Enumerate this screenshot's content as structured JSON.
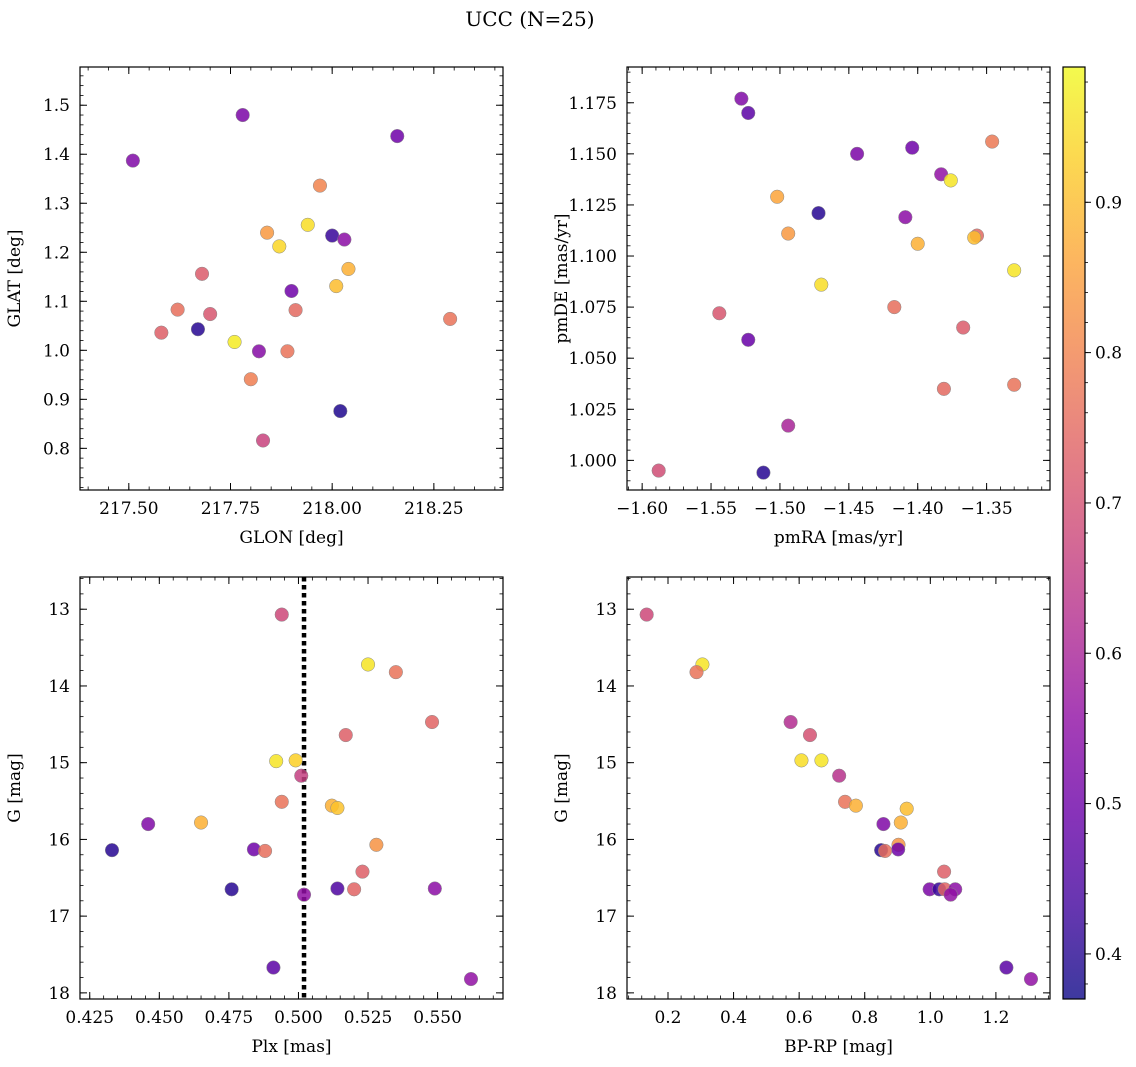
{
  "title": "UCC (N=25)",
  "colorbar": {
    "colormap": "plasma",
    "range": [
      0.37,
      0.99
    ],
    "ticks": [
      0.4,
      0.5,
      0.6,
      0.7,
      0.8,
      0.9
    ],
    "tick_labels": [
      "0.4",
      "0.5",
      "0.6",
      "0.7",
      "0.8",
      "0.9"
    ]
  },
  "chart_data": [
    {
      "type": "scatter",
      "name": "glon-glat",
      "xlabel": "GLON [deg]",
      "ylabel": "GLAT [deg]",
      "xlim": [
        217.38,
        218.42
      ],
      "ylim": [
        0.715,
        1.578
      ],
      "y_inverted": false,
      "xticks": [
        217.5,
        217.75,
        218.0,
        218.25
      ],
      "xtick_labels": [
        "217.50",
        "217.75",
        "218.00",
        "218.25"
      ],
      "yticks": [
        0.8,
        0.9,
        1.0,
        1.1,
        1.2,
        1.3,
        1.4,
        1.5
      ],
      "ytick_labels": [
        "0.8",
        "0.9",
        "1.0",
        "1.1",
        "1.2",
        "1.3",
        "1.4",
        "1.5"
      ],
      "points": [
        {
          "x": 217.51,
          "y": 1.387,
          "c": 0.53
        },
        {
          "x": 217.78,
          "y": 1.48,
          "c": 0.52
        },
        {
          "x": 218.16,
          "y": 1.437,
          "c": 0.5
        },
        {
          "x": 217.97,
          "y": 1.336,
          "c": 0.8
        },
        {
          "x": 217.94,
          "y": 1.256,
          "c": 0.95
        },
        {
          "x": 217.84,
          "y": 1.24,
          "c": 0.84
        },
        {
          "x": 217.87,
          "y": 1.212,
          "c": 0.94
        },
        {
          "x": 218.0,
          "y": 1.234,
          "c": 0.42
        },
        {
          "x": 218.03,
          "y": 1.226,
          "c": 0.55
        },
        {
          "x": 218.04,
          "y": 1.166,
          "c": 0.88
        },
        {
          "x": 217.68,
          "y": 1.156,
          "c": 0.72
        },
        {
          "x": 217.9,
          "y": 1.121,
          "c": 0.5
        },
        {
          "x": 218.01,
          "y": 1.131,
          "c": 0.9
        },
        {
          "x": 217.62,
          "y": 1.083,
          "c": 0.76
        },
        {
          "x": 217.7,
          "y": 1.074,
          "c": 0.71
        },
        {
          "x": 217.91,
          "y": 1.082,
          "c": 0.75
        },
        {
          "x": 218.29,
          "y": 1.064,
          "c": 0.77
        },
        {
          "x": 217.58,
          "y": 1.036,
          "c": 0.73
        },
        {
          "x": 217.67,
          "y": 1.043,
          "c": 0.4
        },
        {
          "x": 217.76,
          "y": 1.017,
          "c": 0.97
        },
        {
          "x": 217.82,
          "y": 0.998,
          "c": 0.54
        },
        {
          "x": 217.89,
          "y": 0.998,
          "c": 0.77
        },
        {
          "x": 217.8,
          "y": 0.941,
          "c": 0.79
        },
        {
          "x": 218.02,
          "y": 0.876,
          "c": 0.39
        },
        {
          "x": 217.83,
          "y": 0.816,
          "c": 0.67
        }
      ]
    },
    {
      "type": "scatter",
      "name": "pmra-pmde",
      "xlabel": "pmRA [mas/yr]",
      "ylabel": "pmDE [mas/yr]",
      "xlim": [
        -1.611,
        -1.304
      ],
      "ylim": [
        0.9855,
        1.1925
      ],
      "y_inverted": false,
      "xticks": [
        -1.6,
        -1.55,
        -1.5,
        -1.45,
        -1.4,
        -1.35
      ],
      "xtick_labels": [
        "−1.60",
        "−1.55",
        "−1.50",
        "−1.45",
        "−1.40",
        "−1.35"
      ],
      "yticks": [
        1.0,
        1.025,
        1.05,
        1.075,
        1.1,
        1.125,
        1.15,
        1.175
      ],
      "ytick_labels": [
        "1.000",
        "1.025",
        "1.050",
        "1.075",
        "1.100",
        "1.125",
        "1.150",
        "1.175"
      ],
      "points": [
        {
          "x": -1.528,
          "y": 1.177,
          "c": 0.53
        },
        {
          "x": -1.523,
          "y": 1.17,
          "c": 0.47
        },
        {
          "x": -1.444,
          "y": 1.15,
          "c": 0.52
        },
        {
          "x": -1.404,
          "y": 1.153,
          "c": 0.5
        },
        {
          "x": -1.346,
          "y": 1.156,
          "c": 0.78
        },
        {
          "x": -1.383,
          "y": 1.14,
          "c": 0.56
        },
        {
          "x": -1.376,
          "y": 1.137,
          "c": 0.96
        },
        {
          "x": -1.502,
          "y": 1.129,
          "c": 0.86
        },
        {
          "x": -1.472,
          "y": 1.121,
          "c": 0.4
        },
        {
          "x": -1.409,
          "y": 1.119,
          "c": 0.55
        },
        {
          "x": -1.494,
          "y": 1.111,
          "c": 0.84
        },
        {
          "x": -1.357,
          "y": 1.11,
          "c": 0.75
        },
        {
          "x": -1.359,
          "y": 1.109,
          "c": 0.9
        },
        {
          "x": -1.4,
          "y": 1.106,
          "c": 0.88
        },
        {
          "x": -1.33,
          "y": 1.093,
          "c": 0.96
        },
        {
          "x": -1.47,
          "y": 1.086,
          "c": 0.95
        },
        {
          "x": -1.417,
          "y": 1.075,
          "c": 0.76
        },
        {
          "x": -1.544,
          "y": 1.072,
          "c": 0.71
        },
        {
          "x": -1.367,
          "y": 1.065,
          "c": 0.72
        },
        {
          "x": -1.523,
          "y": 1.059,
          "c": 0.49
        },
        {
          "x": -1.381,
          "y": 1.035,
          "c": 0.75
        },
        {
          "x": -1.33,
          "y": 1.037,
          "c": 0.77
        },
        {
          "x": -1.494,
          "y": 1.017,
          "c": 0.6
        },
        {
          "x": -1.588,
          "y": 0.995,
          "c": 0.69
        },
        {
          "x": -1.512,
          "y": 0.994,
          "c": 0.4
        }
      ]
    },
    {
      "type": "scatter",
      "name": "plx-g",
      "xlabel": "Plx [mas]",
      "ylabel": "G [mag]",
      "xlim": [
        0.4215,
        0.5735
      ],
      "ylim": [
        12.58,
        18.08
      ],
      "y_inverted": true,
      "vline": {
        "x": 0.502,
        "style": "dotted"
      },
      "xticks": [
        0.425,
        0.45,
        0.475,
        0.5,
        0.525,
        0.55
      ],
      "xtick_labels": [
        "0.425",
        "0.450",
        "0.475",
        "0.500",
        "0.525",
        "0.550"
      ],
      "yticks": [
        13,
        14,
        15,
        16,
        17,
        18
      ],
      "ytick_labels": [
        "13",
        "14",
        "15",
        "16",
        "17",
        "18"
      ],
      "points": [
        {
          "x": 0.494,
          "y": 13.07,
          "c": 0.68
        },
        {
          "x": 0.525,
          "y": 13.72,
          "c": 0.96
        },
        {
          "x": 0.535,
          "y": 13.82,
          "c": 0.77
        },
        {
          "x": 0.548,
          "y": 14.47,
          "c": 0.74
        },
        {
          "x": 0.517,
          "y": 14.64,
          "c": 0.73
        },
        {
          "x": 0.492,
          "y": 14.98,
          "c": 0.96
        },
        {
          "x": 0.499,
          "y": 14.97,
          "c": 0.93
        },
        {
          "x": 0.501,
          "y": 15.17,
          "c": 0.66
        },
        {
          "x": 0.494,
          "y": 15.51,
          "c": 0.77
        },
        {
          "x": 0.512,
          "y": 15.56,
          "c": 0.88
        },
        {
          "x": 0.514,
          "y": 15.59,
          "c": 0.91
        },
        {
          "x": 0.446,
          "y": 15.8,
          "c": 0.53
        },
        {
          "x": 0.465,
          "y": 15.78,
          "c": 0.88
        },
        {
          "x": 0.528,
          "y": 16.07,
          "c": 0.83
        },
        {
          "x": 0.433,
          "y": 16.14,
          "c": 0.4
        },
        {
          "x": 0.484,
          "y": 16.13,
          "c": 0.5
        },
        {
          "x": 0.488,
          "y": 16.15,
          "c": 0.76
        },
        {
          "x": 0.523,
          "y": 16.42,
          "c": 0.73
        },
        {
          "x": 0.476,
          "y": 16.65,
          "c": 0.4
        },
        {
          "x": 0.514,
          "y": 16.64,
          "c": 0.45
        },
        {
          "x": 0.52,
          "y": 16.65,
          "c": 0.74
        },
        {
          "x": 0.549,
          "y": 16.64,
          "c": 0.55
        },
        {
          "x": 0.502,
          "y": 16.72,
          "c": 0.56
        },
        {
          "x": 0.491,
          "y": 17.67,
          "c": 0.47
        },
        {
          "x": 0.562,
          "y": 17.82,
          "c": 0.56
        }
      ]
    },
    {
      "type": "scatter",
      "name": "bprp-g",
      "xlabel": "BP-RP [mag]",
      "ylabel": "G [mag]",
      "xlim": [
        0.075,
        1.365
      ],
      "ylim": [
        12.58,
        18.08
      ],
      "y_inverted": true,
      "xticks": [
        0.2,
        0.4,
        0.6,
        0.8,
        1.0,
        1.2
      ],
      "xtick_labels": [
        "0.2",
        "0.4",
        "0.6",
        "0.8",
        "1.0",
        "1.2"
      ],
      "yticks": [
        13,
        14,
        15,
        16,
        17,
        18
      ],
      "ytick_labels": [
        "13",
        "14",
        "15",
        "16",
        "17",
        "18"
      ],
      "points": [
        {
          "x": 0.135,
          "y": 13.07,
          "c": 0.68
        },
        {
          "x": 0.305,
          "y": 13.72,
          "c": 0.96
        },
        {
          "x": 0.287,
          "y": 13.82,
          "c": 0.77
        },
        {
          "x": 0.574,
          "y": 14.47,
          "c": 0.62
        },
        {
          "x": 0.633,
          "y": 14.64,
          "c": 0.7
        },
        {
          "x": 0.607,
          "y": 14.97,
          "c": 0.95
        },
        {
          "x": 0.668,
          "y": 14.97,
          "c": 0.96
        },
        {
          "x": 0.722,
          "y": 15.17,
          "c": 0.63
        },
        {
          "x": 0.74,
          "y": 15.51,
          "c": 0.77
        },
        {
          "x": 0.773,
          "y": 15.56,
          "c": 0.88
        },
        {
          "x": 0.928,
          "y": 15.6,
          "c": 0.9
        },
        {
          "x": 0.857,
          "y": 15.8,
          "c": 0.53
        },
        {
          "x": 0.91,
          "y": 15.78,
          "c": 0.88
        },
        {
          "x": 0.903,
          "y": 16.07,
          "c": 0.83
        },
        {
          "x": 0.85,
          "y": 16.14,
          "c": 0.4
        },
        {
          "x": 0.902,
          "y": 16.13,
          "c": 0.5
        },
        {
          "x": 0.862,
          "y": 16.15,
          "c": 0.76
        },
        {
          "x": 1.042,
          "y": 16.42,
          "c": 0.73
        },
        {
          "x": 0.998,
          "y": 16.65,
          "c": 0.52
        },
        {
          "x": 1.027,
          "y": 16.65,
          "c": 0.42
        },
        {
          "x": 1.044,
          "y": 16.65,
          "c": 0.74
        },
        {
          "x": 1.076,
          "y": 16.65,
          "c": 0.55
        },
        {
          "x": 1.062,
          "y": 16.72,
          "c": 0.56
        },
        {
          "x": 1.232,
          "y": 17.67,
          "c": 0.47
        },
        {
          "x": 1.307,
          "y": 17.82,
          "c": 0.56
        }
      ]
    }
  ]
}
